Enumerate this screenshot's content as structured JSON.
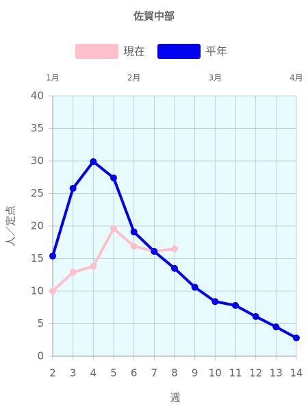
{
  "chart_data": {
    "type": "line",
    "title": "佐賀中部",
    "x": [
      2,
      3,
      4,
      5,
      6,
      7,
      8,
      9,
      10,
      11,
      12,
      13,
      14
    ],
    "xlim": [
      2,
      14
    ],
    "xticks": [
      2,
      3,
      4,
      5,
      6,
      7,
      8,
      9,
      10,
      11,
      12,
      13,
      14
    ],
    "top_xticks": [
      {
        "value": 2,
        "label": "1月"
      },
      {
        "value": 6,
        "label": "2月"
      },
      {
        "value": 10,
        "label": "3月"
      },
      {
        "value": 14,
        "label": "4月"
      }
    ],
    "ylim": [
      0,
      40
    ],
    "yticks": [
      0,
      5,
      10,
      15,
      20,
      25,
      30,
      35,
      40
    ],
    "xlabel": "週",
    "ylabel": "人／定点",
    "grid": true,
    "series": [
      {
        "name": "現在",
        "color": "#ffc0cb",
        "values": [
          10.0,
          12.9,
          13.8,
          19.6,
          16.9,
          16.1,
          16.5,
          null,
          null,
          null,
          null,
          null,
          null
        ]
      },
      {
        "name": "平年",
        "color": "#0000ee",
        "values": [
          15.4,
          25.8,
          29.9,
          27.4,
          19.1,
          16.1,
          13.5,
          10.6,
          8.4,
          7.8,
          6.1,
          4.5,
          2.8
        ]
      }
    ]
  }
}
